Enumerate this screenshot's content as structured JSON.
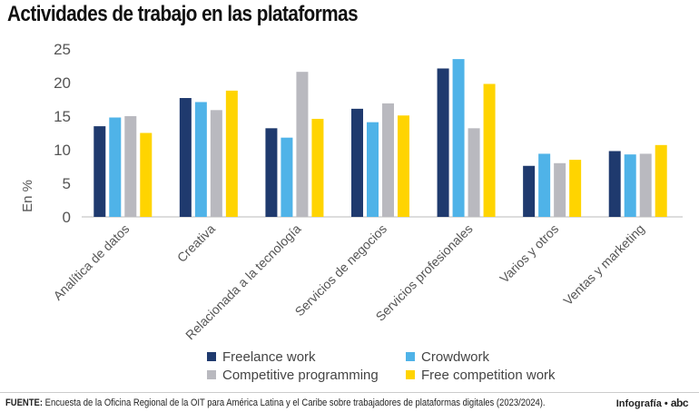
{
  "title": "Actividades de trabajo en las plataformas",
  "source_label": "FUENTE:",
  "source_text": "Encuesta de la Oficina Regional de la OIT para América Latina y el Caribe sobre trabajadores de plataformas digitales (2023/2024).",
  "credit": "Infografía •",
  "credit_logo": "abc",
  "colors": {
    "freelance": "#1f3a6e",
    "crowdwork": "#4fb3e8",
    "competitive": "#b9b9bf",
    "free_competition": "#ffd400"
  },
  "chart_data": {
    "type": "bar",
    "title": "Actividades de trabajo en las plataformas",
    "xlabel": "",
    "ylabel": "En %",
    "ylim": [
      0,
      25
    ],
    "yticks": [
      0,
      5,
      10,
      15,
      20,
      25
    ],
    "grid": false,
    "legend_position": "bottom",
    "categories": [
      "Analítica de datos",
      "Creativa",
      "Relacionada a la tecnología",
      "Servicios de negocios",
      "Servicios profesionales",
      "Varios y otros",
      "Ventas y marketing"
    ],
    "series": [
      {
        "name": "Freelance work",
        "color": "#1f3a6e",
        "values": [
          13.5,
          17.7,
          13.2,
          16.1,
          22.1,
          7.6,
          9.8
        ]
      },
      {
        "name": "Crowdwork",
        "color": "#4fb3e8",
        "values": [
          14.8,
          17.1,
          11.8,
          14.1,
          23.5,
          9.4,
          9.3
        ]
      },
      {
        "name": "Competitive programming",
        "color": "#b9b9bf",
        "values": [
          15.0,
          15.9,
          21.6,
          16.9,
          13.2,
          8.0,
          9.4
        ]
      },
      {
        "name": "Free competition work",
        "color": "#ffd400",
        "values": [
          12.5,
          18.8,
          14.6,
          15.1,
          19.8,
          8.5,
          10.7
        ]
      }
    ]
  }
}
